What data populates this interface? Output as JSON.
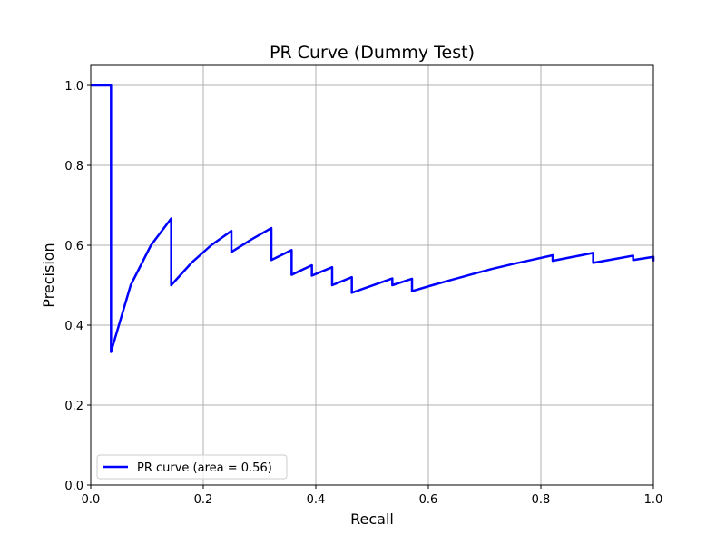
{
  "chart_data": {
    "type": "line",
    "title": "PR Curve (Dummy Test)",
    "xlabel": "Recall",
    "ylabel": "Precision",
    "xlim": [
      0.0,
      1.0
    ],
    "ylim": [
      0.0,
      1.05
    ],
    "grid": true,
    "legend_placement": "lower-left",
    "x_ticks": [
      "0.0",
      "0.2",
      "0.4",
      "0.6",
      "0.8",
      "1.0"
    ],
    "y_ticks": [
      "0.0",
      "0.2",
      "0.4",
      "0.6",
      "0.8",
      "1.0"
    ],
    "series": [
      {
        "name": "PR curve (area = 0.56)",
        "color": "#0000ff",
        "points": [
          [
            0.0,
            1.0
          ],
          [
            0.036,
            1.0
          ],
          [
            0.036,
            0.333
          ],
          [
            0.071,
            0.5
          ],
          [
            0.107,
            0.6
          ],
          [
            0.143,
            0.667
          ],
          [
            0.143,
            0.5
          ],
          [
            0.179,
            0.556
          ],
          [
            0.214,
            0.6
          ],
          [
            0.25,
            0.636
          ],
          [
            0.25,
            0.583
          ],
          [
            0.286,
            0.615
          ],
          [
            0.321,
            0.643
          ],
          [
            0.321,
            0.563
          ],
          [
            0.357,
            0.588
          ],
          [
            0.357,
            0.526
          ],
          [
            0.393,
            0.55
          ],
          [
            0.393,
            0.524
          ],
          [
            0.429,
            0.545
          ],
          [
            0.429,
            0.5
          ],
          [
            0.464,
            0.52
          ],
          [
            0.464,
            0.481
          ],
          [
            0.536,
            0.517
          ],
          [
            0.536,
            0.5
          ],
          [
            0.571,
            0.516
          ],
          [
            0.571,
            0.485
          ],
          [
            0.607,
            0.5
          ],
          [
            0.643,
            0.514
          ],
          [
            0.679,
            0.528
          ],
          [
            0.714,
            0.541
          ],
          [
            0.75,
            0.553
          ],
          [
            0.786,
            0.564
          ],
          [
            0.821,
            0.575
          ],
          [
            0.821,
            0.561
          ],
          [
            0.857,
            0.571
          ],
          [
            0.893,
            0.581
          ],
          [
            0.893,
            0.556
          ],
          [
            0.929,
            0.565
          ],
          [
            0.964,
            0.574
          ],
          [
            0.964,
            0.563
          ],
          [
            1.0,
            0.571
          ],
          [
            1.0,
            0.56
          ]
        ]
      }
    ]
  }
}
